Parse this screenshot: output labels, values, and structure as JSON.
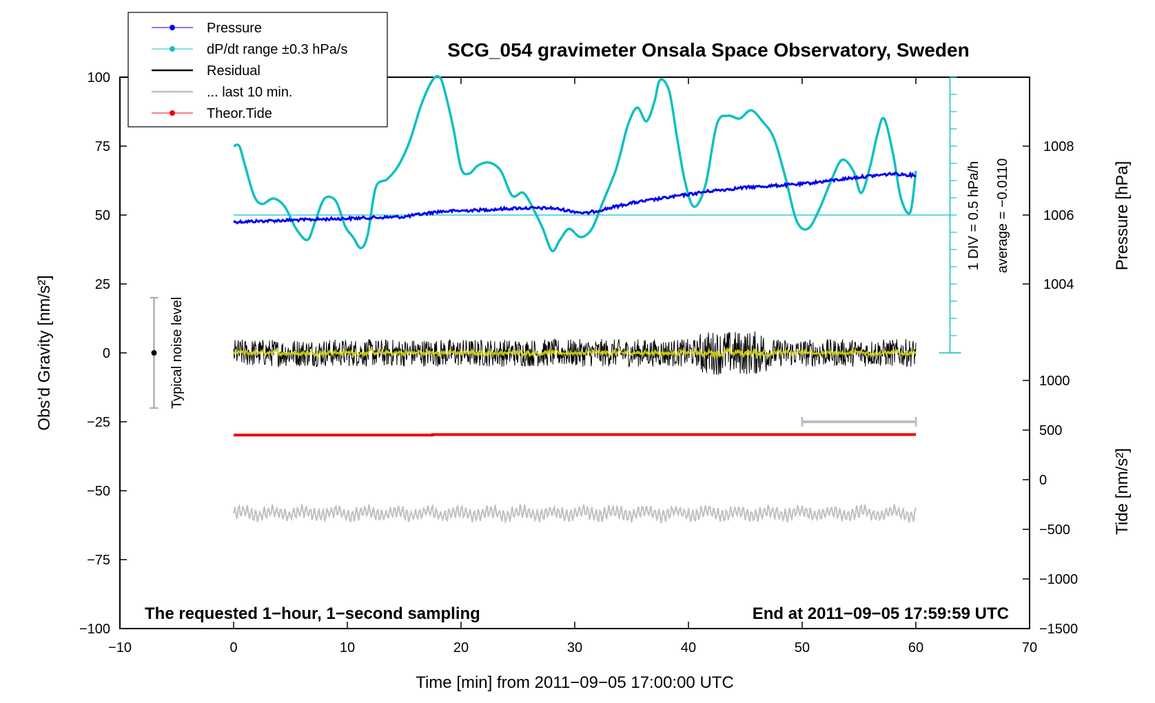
{
  "chart_data": {
    "type": "line",
    "title": "SCG_054 gravimeter Onsala Space Observatory, Sweden",
    "xlabel": "Time [min] from 2011−09−05 17:00:00 UTC",
    "ylabel_left": "Obs’d Gravity [nm/s²]",
    "ylabel_right_top": "Pressure [hPa]",
    "ylabel_right_bottom": "Tide [nm/s²]",
    "xlim": [
      -10,
      70
    ],
    "ylim_left": [
      -100,
      100
    ],
    "x_ticks": [
      {
        "v": -10,
        "label": "−10"
      },
      {
        "v": 0,
        "label": "0"
      },
      {
        "v": 10,
        "label": "10"
      },
      {
        "v": 20,
        "label": "20"
      },
      {
        "v": 30,
        "label": "30"
      },
      {
        "v": 40,
        "label": "40"
      },
      {
        "v": 50,
        "label": "50"
      },
      {
        "v": 60,
        "label": "60"
      },
      {
        "v": 70,
        "label": "70"
      }
    ],
    "left_ticks": [
      {
        "v": 100,
        "label": "100"
      },
      {
        "v": 75,
        "label": "75"
      },
      {
        "v": 50,
        "label": "50"
      },
      {
        "v": 25,
        "label": "25"
      },
      {
        "v": 0,
        "label": "0"
      },
      {
        "v": -25,
        "label": "−25"
      },
      {
        "v": -50,
        "label": "−50"
      },
      {
        "v": -75,
        "label": "−75"
      },
      {
        "v": -100,
        "label": "−100"
      }
    ],
    "pressure_ticks": [
      {
        "v": 1008,
        "label": "1008"
      },
      {
        "v": 1006,
        "label": "1006"
      },
      {
        "v": 1004,
        "label": "1004"
      }
    ],
    "pressure_range": [
      1002,
      1010
    ],
    "tide_ticks": [
      {
        "v": 1000,
        "label": "1000"
      },
      {
        "v": 500,
        "label": "500"
      },
      {
        "v": 0,
        "label": "0"
      },
      {
        "v": -500,
        "label": "−500"
      },
      {
        "v": -1000,
        "label": "−1000"
      },
      {
        "v": -1500,
        "label": "−1500"
      }
    ],
    "tide_range": [
      -1500,
      1000
    ],
    "series": [
      {
        "name": "Pressure",
        "color": "#0000ee",
        "unit": "hPa",
        "x": [
          0,
          5,
          10,
          15,
          18,
          22,
          25,
          28,
          31,
          35,
          38,
          42,
          45,
          50,
          55,
          58,
          60
        ],
        "values": [
          1005.8,
          1005.85,
          1005.9,
          1005.95,
          1006.1,
          1006.15,
          1006.2,
          1006.2,
          1006.05,
          1006.35,
          1006.5,
          1006.7,
          1006.8,
          1006.9,
          1007.1,
          1007.2,
          1007.15
        ]
      },
      {
        "name": "dP/dt range ±0.3 hPa/s",
        "color": "#10c0c0",
        "x": [
          0,
          0.5,
          1,
          1.8,
          2.5,
          3.5,
          4.5,
          5.5,
          6.5,
          7.2,
          8,
          9,
          9.8,
          10.5,
          11.2,
          11.8,
          12.5,
          13.5,
          14.5,
          15.5,
          16.5,
          17.5,
          18.1,
          18.5,
          19.3,
          20,
          20.7,
          21.5,
          22.5,
          23.5,
          24.5,
          25.5,
          26.5,
          27.2,
          28,
          28.7,
          29.5,
          30.5,
          31.5,
          32.5,
          33.5,
          34,
          34.7,
          35.5,
          36.3,
          37,
          37.5,
          38.3,
          39,
          39.7,
          40.5,
          41.5,
          42.5,
          43.5,
          44.5,
          45.5,
          46.5,
          47.5,
          48.5,
          49.5,
          50.5,
          51.5,
          52.5,
          53.5,
          54.5,
          55.2,
          56,
          56.6,
          57.2,
          58,
          58.7,
          59.5,
          60
        ],
        "values": [
          75,
          75,
          68,
          57,
          54,
          56,
          53,
          45,
          41,
          48,
          56,
          55,
          46,
          42,
          38,
          43,
          60,
          63,
          68,
          77,
          90,
          99,
          100,
          96,
          82,
          67,
          65,
          68,
          69,
          66,
          57,
          58,
          51,
          45,
          37,
          41,
          45,
          42,
          45,
          55,
          65,
          72,
          83,
          89,
          84,
          91,
          99,
          95,
          78,
          62,
          53,
          61,
          83,
          86,
          85,
          88,
          84,
          78,
          64,
          48,
          45,
          52,
          62,
          70,
          66,
          58,
          68,
          79,
          85,
          72,
          56,
          51,
          66
        ]
      },
      {
        "name": "Residual",
        "color": "#000000",
        "x": [
          0,
          60
        ],
        "values": [
          0,
          0
        ]
      },
      {
        "name": "... last 10 min.",
        "color": "#c0c0c0",
        "x": [
          50,
          60
        ],
        "values": [
          -25,
          -25
        ]
      },
      {
        "name": "Theor.Tide",
        "color": "#ee0000",
        "unit": "nm/s²",
        "x": [
          0,
          17.5,
          17.5,
          60
        ],
        "values": [
          450,
          450,
          455,
          455
        ]
      }
    ],
    "pressure_reference_line": {
      "value": 1006
    },
    "dpdt_scale": {
      "label_div": "1 DIV = 0.5 hPa/h",
      "label_avg": "average = −0.0110",
      "x": 63,
      "ylim": [
        0,
        100
      ]
    },
    "noise_bar": {
      "label": "Typical noise level",
      "x": -7,
      "center": 0,
      "low": -20,
      "high": 20
    },
    "legend": {
      "position": "top-left"
    },
    "grid": false,
    "annotations": {
      "bottom_left": "The requested 1−hour, 1−second sampling",
      "bottom_right": "End at 2011−09−05 17:59:59 UTC"
    }
  }
}
